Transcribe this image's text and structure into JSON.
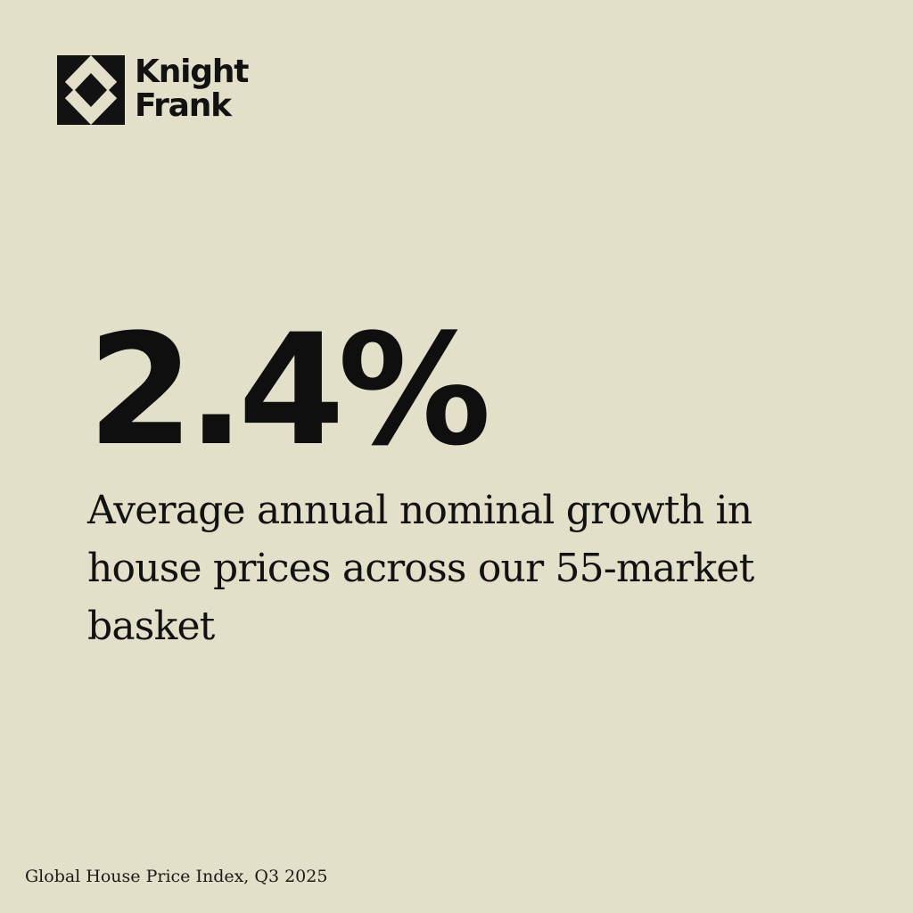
{
  "brand": {
    "name_line1": "Knight",
    "name_line2": "Frank",
    "logo_icon": "knight-frank-logo-icon"
  },
  "headline": {
    "value": "2.4%"
  },
  "caption": {
    "text": "Average annual nominal growth in house prices across our 55-market basket"
  },
  "source": {
    "text": "Global House Price Index, Q3 2025"
  },
  "colors": {
    "background": "#e2e0c8",
    "text": "#121212"
  }
}
